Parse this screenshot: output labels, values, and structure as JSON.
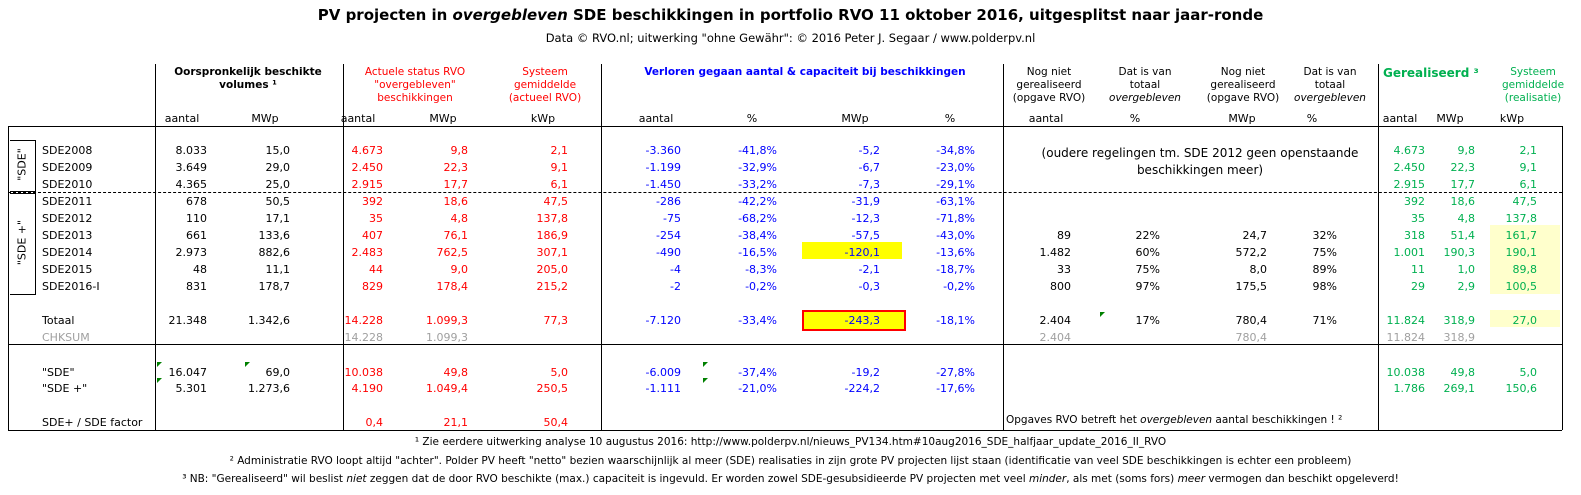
{
  "title_pre": "PV projecten in ",
  "title_em": "overgebleven",
  "title_post": " SDE beschikkingen in portfolio RVO 11 oktober 2016, uitgesplitst naar jaar-ronde",
  "subtitle": "Data © RVO.nl; uitwerking \"ohne Gewähr\": © 2016 Peter J. Segaar / www.polderpv.nl",
  "headers": {
    "orig": "Oorspronkelijk beschikte volumes ¹",
    "actueel": "Actuele status RVO \"overgebleven\" beschikkingen",
    "systeem": "Systeem gemiddelde (actueel RVO)",
    "verloren": "Verloren gegaan aantal & capaciteit bij beschikkingen",
    "nognietA": "Nog niet gerealiseerd (opgave RVO)",
    "datisA": "Dat is van totaal",
    "datisA_em": "overgebleven",
    "nognietB": "Nog niet gerealiseerd (opgave RVO)",
    "datisB": "Dat is van totaal",
    "datisB_em": "overgebleven",
    "gerealiseerd": "Gerealiseerd ³",
    "sysgem": "Systeem gemiddelde (realisatie)"
  },
  "units": [
    "aantal",
    "MWp",
    "aantal",
    "MWp",
    "kWp",
    "aantal",
    "%",
    "MWp",
    "%",
    "aantal",
    "%",
    "MWp",
    "%",
    "aantal",
    "MWp",
    "kWp"
  ],
  "group_labels": {
    "sde": "\"SDE\"",
    "sdeplus": "\"SDE +\""
  },
  "rows": [
    {
      "name": "SDE2008",
      "v": [
        "8.033",
        "15,0",
        "4.673",
        "9,8",
        "2,1",
        "-3.360",
        "-41,8%",
        "-5,2",
        "-34,8%",
        "",
        "",
        "",
        "",
        "4.673",
        "9,8",
        "2,1"
      ]
    },
    {
      "name": "SDE2009",
      "v": [
        "3.649",
        "29,0",
        "2.450",
        "22,3",
        "9,1",
        "-1.199",
        "-32,9%",
        "-6,7",
        "-23,0%",
        "",
        "",
        "",
        "",
        "2.450",
        "22,3",
        "9,1"
      ]
    },
    {
      "name": "SDE2010",
      "v": [
        "4.365",
        "25,0",
        "2.915",
        "17,7",
        "6,1",
        "-1.450",
        "-33,2%",
        "-7,3",
        "-29,1%",
        "",
        "",
        "",
        "",
        "2.915",
        "17,7",
        "6,1"
      ]
    },
    {
      "name": "SDE2011",
      "v": [
        "678",
        "50,5",
        "392",
        "18,6",
        "47,5",
        "-286",
        "-42,2%",
        "-31,9",
        "-63,1%",
        "",
        "",
        "",
        "",
        "392",
        "18,6",
        "47,5"
      ]
    },
    {
      "name": "SDE2012",
      "v": [
        "110",
        "17,1",
        "35",
        "4,8",
        "137,8",
        "-75",
        "-68,2%",
        "-12,3",
        "-71,8%",
        "",
        "",
        "",
        "",
        "35",
        "4,8",
        "137,8"
      ]
    },
    {
      "name": "SDE2013",
      "v": [
        "661",
        "133,6",
        "407",
        "76,1",
        "186,9",
        "-254",
        "-38,4%",
        "-57,5",
        "-43,0%",
        "89",
        "22%",
        "24,7",
        "32%",
        "318",
        "51,4",
        "161,7"
      ]
    },
    {
      "name": "SDE2014",
      "v": [
        "2.973",
        "882,6",
        "2.483",
        "762,5",
        "307,1",
        "-490",
        "-16,5%",
        "-120,1",
        "-13,6%",
        "1.482",
        "60%",
        "572,2",
        "75%",
        "1.001",
        "190,3",
        "190,1"
      ]
    },
    {
      "name": "SDE2015",
      "v": [
        "48",
        "11,1",
        "44",
        "9,0",
        "205,0",
        "-4",
        "-8,3%",
        "-2,1",
        "-18,7%",
        "33",
        "75%",
        "8,0",
        "89%",
        "11",
        "1,0",
        "89,8"
      ]
    },
    {
      "name": "SDE2016-I",
      "v": [
        "831",
        "178,7",
        "829",
        "178,4",
        "215,2",
        "-2",
        "-0,2%",
        "-0,3",
        "-0,2%",
        "800",
        "97%",
        "175,5",
        "98%",
        "29",
        "2,9",
        "100,5"
      ]
    }
  ],
  "old_note": "(oudere regelingen tm. SDE 2012 geen openstaande beschikkingen meer)",
  "totaal": {
    "name": "Totaal",
    "v": [
      "21.348",
      "1.342,6",
      "14.228",
      "1.099,3",
      "77,3",
      "-7.120",
      "-33,4%",
      "-243,3",
      "-18,1%",
      "2.404",
      "17%",
      "780,4",
      "71%",
      "11.824",
      "318,9",
      "27,0"
    ]
  },
  "chksum": {
    "name": "CHKSUM",
    "v": [
      "",
      "",
      "14.228",
      "1.099,3",
      "",
      "",
      "",
      "",
      "",
      "2.404",
      "",
      "780,4",
      "",
      "11.824",
      "318,9",
      ""
    ]
  },
  "sde_row": {
    "name": "\"SDE\"",
    "v": [
      "16.047",
      "69,0",
      "10.038",
      "49,8",
      "5,0",
      "-6.009",
      "-37,4%",
      "-19,2",
      "-27,8%",
      "",
      "",
      "",
      "",
      "10.038",
      "49,8",
      "5,0"
    ]
  },
  "sdeplus_row": {
    "name": "\"SDE +\"",
    "v": [
      "5.301",
      "1.273,6",
      "4.190",
      "1.049,4",
      "250,5",
      "-1.111",
      "-21,0%",
      "-224,2",
      "-17,6%",
      "",
      "",
      "",
      "",
      "1.786",
      "269,1",
      "150,6"
    ]
  },
  "factor_row": {
    "name": "SDE+ / SDE factor",
    "v": [
      "",
      "",
      "0,4",
      "21,1",
      "50,4"
    ]
  },
  "opgaves_pre": "Opgaves RVO betreft het ",
  "opgaves_em": "overgebleven",
  "opgaves_post": " aantal beschikkingen ! ²",
  "foot1": "¹ Zie eerdere uitwerking analyse 10 augustus 2016: http://www.polderpv.nl/nieuws_PV134.htm#10aug2016_SDE_halfjaar_update_2016_II_RVO",
  "foot2": "² Administratie RVO loopt altijd \"achter\". Polder PV heeft \"netto\" bezien waarschijnlijk al meer (SDE) realisaties in zijn grote PV projecten lijst staan (identificatie van veel SDE beschikkingen is echter een probleem)",
  "foot3_a": "³ NB: \"Gerealiseerd\" wil beslist ",
  "foot3_b": "niet",
  "foot3_c": " zeggen dat de door RVO beschikte (max.) capaciteit is ingevuld. Er worden zowel SDE-gesubsidieerde PV projecten met veel ",
  "foot3_d": "minder",
  "foot3_e": ", als met (soms fors) ",
  "foot3_f": "meer",
  "foot3_g": " vermogen dan beschikt opgeleverd!"
}
